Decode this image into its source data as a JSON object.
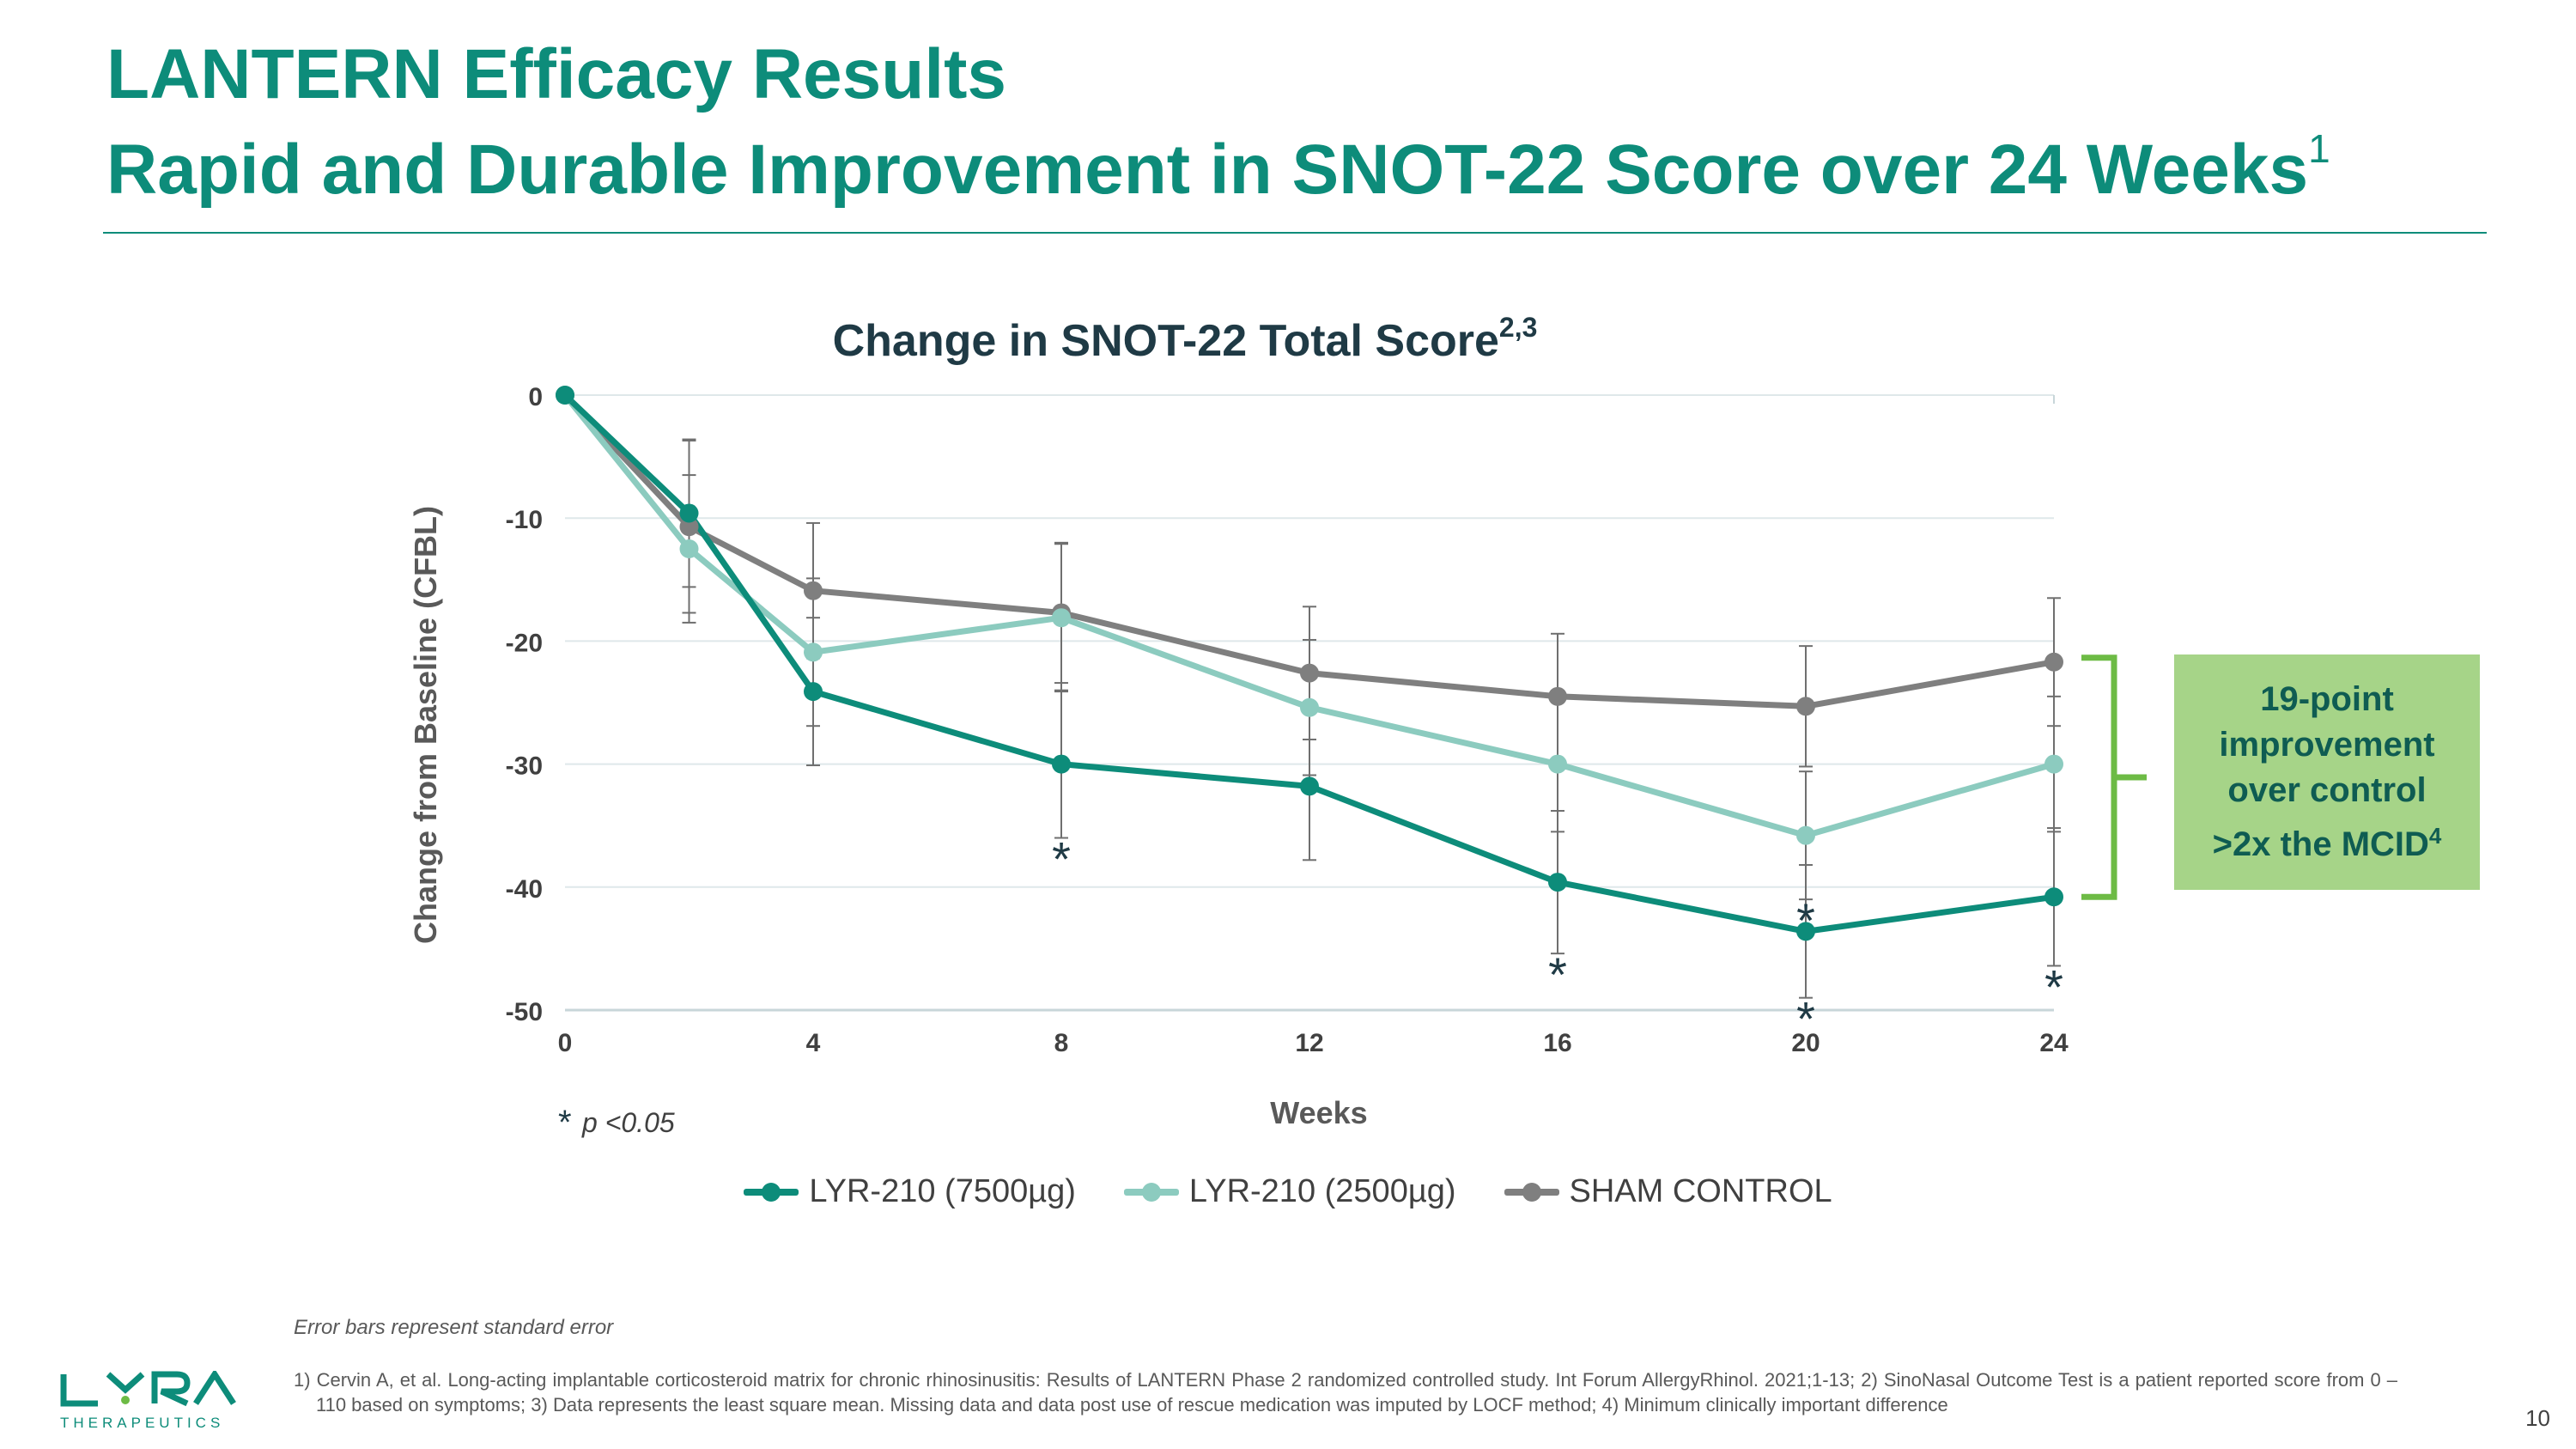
{
  "slide": {
    "title_line1": "LANTERN Efficacy Results",
    "title_line2": "Rapid and Durable Improvement in SNOT-22 Score over 24 Weeks",
    "title_sup": "1",
    "page_number": "10",
    "brand_color": "#0d8c7a"
  },
  "callout": {
    "line1": "19-point",
    "line2": "improvement",
    "line3": "over control",
    "line4": ">2x the MCID",
    "sup": "4",
    "bg_color": "#a6d488",
    "bracket_color": "#6dbb45"
  },
  "chart_data": {
    "type": "line",
    "title": "Change in SNOT-22 Total Score",
    "title_sup": "2,3",
    "xlabel": "Weeks",
    "ylabel": "Change from Baseline (CFBL)",
    "xlim": [
      0,
      24
    ],
    "ylim": [
      -50,
      0
    ],
    "x_ticks": [
      0,
      4,
      8,
      12,
      16,
      20,
      24
    ],
    "y_ticks": [
      0,
      -10,
      -20,
      -30,
      -40,
      -50
    ],
    "grid": "horizontal",
    "significance_note": "p <0.05",
    "significance_marker": "*",
    "series": [
      {
        "name": "LYR-210 (7500µg)",
        "color": "#0d8c7a",
        "x": [
          0,
          2,
          4,
          8,
          12,
          16,
          20,
          24
        ],
        "values": [
          0,
          -9.6,
          -24.1,
          -30,
          -31.8,
          -39.6,
          -43.6,
          -40.8
        ],
        "error": [
          0,
          6,
          6,
          6,
          6,
          5.8,
          5.4,
          5.6
        ],
        "significant": [
          false,
          false,
          false,
          true,
          false,
          true,
          true,
          true
        ]
      },
      {
        "name": "LYR-210 (2500µg)",
        "color": "#8ccbbf",
        "x": [
          0,
          2,
          4,
          8,
          12,
          16,
          20,
          24
        ],
        "values": [
          0,
          -12.5,
          -20.9,
          -18.1,
          -25.4,
          -30,
          -35.8,
          -30
        ],
        "error": [
          0,
          6,
          6,
          6,
          5.5,
          5.5,
          5.2,
          5.5
        ],
        "significant": [
          false,
          false,
          false,
          false,
          false,
          false,
          true,
          false
        ]
      },
      {
        "name": "SHAM CONTROL",
        "color": "#7f7f7f",
        "x": [
          0,
          2,
          4,
          8,
          12,
          16,
          20,
          24
        ],
        "values": [
          0,
          -10.7,
          -15.9,
          -17.7,
          -22.6,
          -24.5,
          -25.3,
          -21.7
        ],
        "error": [
          0,
          7,
          5.5,
          5.7,
          5.4,
          5.1,
          4.9,
          5.2
        ],
        "significant": [
          false,
          false,
          false,
          false,
          false,
          false,
          false,
          false
        ]
      }
    ]
  },
  "footer": {
    "error_note": "Error bars represent standard error",
    "references": "1) Cervin A, et al. Long-acting implantable corticosteroid matrix for chronic rhinosinusitis: Results of LANTERN Phase 2 randomized controlled study. Int Forum AllergyRhinol. 2021;1-13; 2) SinoNasal Outcome Test is a patient reported score from 0 – 110 based on symptoms; 3) Data represents the least square mean. Missing data and data post use of rescue medication was imputed by LOCF method; 4) Minimum clinically important difference",
    "logo_text": "THERAPEUTICS",
    "logo_word": "LYRA"
  }
}
